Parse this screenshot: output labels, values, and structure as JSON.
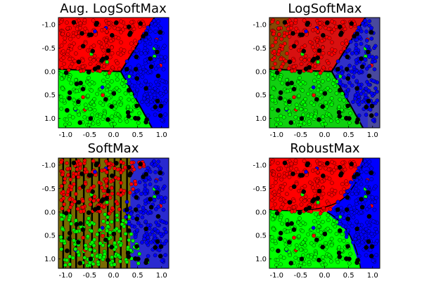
{
  "chart_data": [
    {
      "type": "scatter",
      "title": "Aug. LogSoftMax",
      "background": "class-probability regions (red / green / blue)",
      "x_ticks": [
        "-1.0",
        "-0.5",
        "0.0",
        "0.5",
        "1.0"
      ],
      "y_ticks": [
        "-1.0",
        "-0.5",
        "0.0",
        "0.5",
        "1.0"
      ],
      "xlim": [
        -1.15,
        1.15
      ],
      "ylim": [
        -1.15,
        1.2
      ],
      "y_inverted": true,
      "grid": false,
      "legend": "none"
    },
    {
      "type": "scatter",
      "title": "LogSoftMax",
      "background": "class-probability regions (red / green / blue)",
      "x_ticks": [
        "-1.0",
        "-0.5",
        "0.0",
        "0.5",
        "1.0"
      ],
      "y_ticks": [
        "-1.0",
        "-0.5",
        "0.0",
        "0.5",
        "1.0"
      ],
      "xlim": [
        -1.15,
        1.15
      ],
      "ylim": [
        -1.15,
        1.2
      ],
      "y_inverted": true,
      "grid": false,
      "legend": "none"
    },
    {
      "type": "scatter",
      "title": "SoftMax",
      "background": "class-probability regions (red / green / blue)",
      "x_ticks": [
        "-1.0",
        "-0.5",
        "0.0",
        "0.5",
        "1.0"
      ],
      "y_ticks": [
        "-1.0",
        "-0.5",
        "0.0",
        "0.5",
        "1.0"
      ],
      "xlim": [
        -1.15,
        1.15
      ],
      "ylim": [
        -1.15,
        1.2
      ],
      "y_inverted": true,
      "grid": false,
      "legend": "none"
    },
    {
      "type": "scatter",
      "title": "RobustMax",
      "background": "class-probability regions (red / green / blue)",
      "x_ticks": [
        "-1.0",
        "-0.5",
        "0.0",
        "0.5",
        "1.0"
      ],
      "y_ticks": [
        "-1.0",
        "-0.5",
        "0.0",
        "0.5",
        "1.0"
      ],
      "xlim": [
        -1.15,
        1.15
      ],
      "ylim": [
        -1.15,
        1.2
      ],
      "y_inverted": true,
      "grid": false,
      "legend": "none"
    }
  ],
  "colors": {
    "class_red": "#ff0000",
    "class_green": "#00ff00",
    "class_blue": "#0000ff",
    "olive": "#7a6a00",
    "boundary": "#000000",
    "inducing_points": "#000000"
  }
}
